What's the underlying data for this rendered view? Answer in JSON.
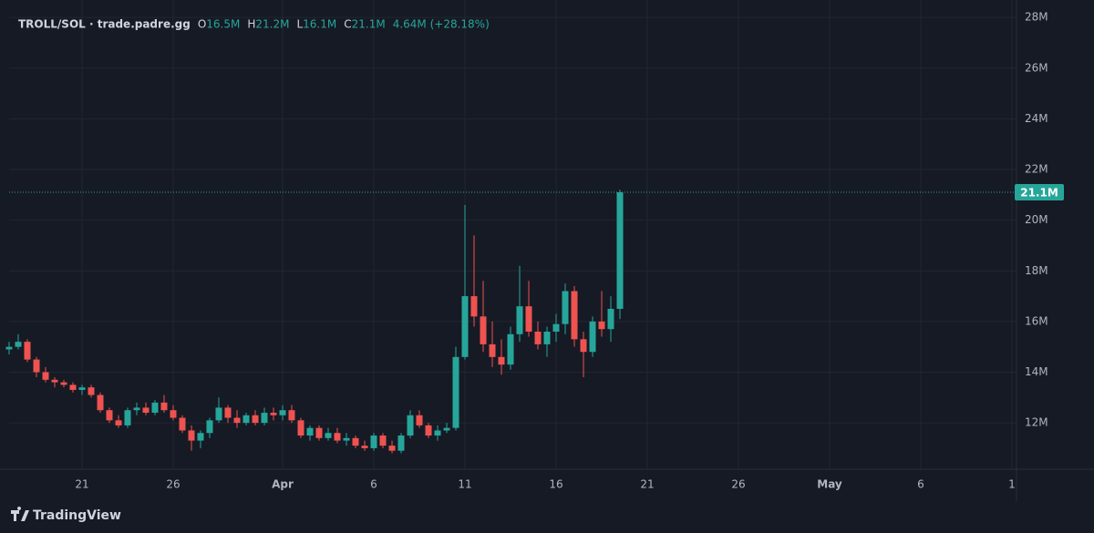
{
  "chart_data": {
    "type": "candlestick",
    "title": "TROLL/SOL · trade.padre.gg",
    "legend": {
      "labels": [
        "O",
        "H",
        "L",
        "C"
      ],
      "value_labels": [
        "16.5M",
        "21.2M",
        "16.1M",
        "21.1M"
      ],
      "change": "4.64M (+28.18%)"
    },
    "brand": "TradingView",
    "up_color": "#26a69a",
    "down_color": "#ef5350",
    "grid": true,
    "x": [
      17,
      17.5,
      18,
      18.5,
      19,
      19.5,
      20,
      20.5,
      21,
      21.5,
      22,
      22.5,
      23,
      23.5,
      24,
      24.5,
      25,
      25.5,
      26,
      26.5,
      27,
      27.5,
      28,
      28.5,
      29,
      29.5,
      30,
      30.5,
      31,
      31.5,
      32,
      32.5,
      33,
      33.5,
      34,
      34.5,
      35,
      35.5,
      36,
      36.5,
      37,
      37.5,
      38,
      38.5,
      39,
      39.5,
      40,
      40.5,
      41,
      41.5,
      42,
      42.5,
      43,
      43.5,
      44,
      44.5,
      45,
      45.5,
      46,
      46.5,
      47,
      47.5,
      48,
      48.5,
      49,
      49.5,
      50,
      50.5
    ],
    "open": [
      14.9,
      15.0,
      15.2,
      14.5,
      14.0,
      13.7,
      13.6,
      13.5,
      13.3,
      13.4,
      13.1,
      12.5,
      12.1,
      11.9,
      12.5,
      12.6,
      12.4,
      12.8,
      12.5,
      12.2,
      11.7,
      11.3,
      11.6,
      12.1,
      12.6,
      12.2,
      12.0,
      12.3,
      12.0,
      12.4,
      12.3,
      12.5,
      12.1,
      11.5,
      11.8,
      11.4,
      11.6,
      11.3,
      11.4,
      11.1,
      11.0,
      11.5,
      11.1,
      10.9,
      11.5,
      12.3,
      11.9,
      11.5,
      11.7,
      11.8,
      14.6,
      17.0,
      16.2,
      15.1,
      14.6,
      14.3,
      15.5,
      16.6,
      15.6,
      15.1,
      15.6,
      15.9,
      17.2,
      15.3,
      14.8,
      16.0,
      15.7,
      16.5
    ],
    "high": [
      15.2,
      15.5,
      15.3,
      14.6,
      14.2,
      13.8,
      13.7,
      13.6,
      13.5,
      13.5,
      13.2,
      12.6,
      12.3,
      12.6,
      12.8,
      12.8,
      12.9,
      13.1,
      12.7,
      12.3,
      11.9,
      11.7,
      12.2,
      13.0,
      12.7,
      12.5,
      12.4,
      12.5,
      12.6,
      12.6,
      12.7,
      12.7,
      12.2,
      11.9,
      11.9,
      11.8,
      11.8,
      11.6,
      11.5,
      11.3,
      11.6,
      11.6,
      11.3,
      11.6,
      12.5,
      12.5,
      12.0,
      11.9,
      12.0,
      15.0,
      20.6,
      19.4,
      17.6,
      16.0,
      15.3,
      15.8,
      18.2,
      17.6,
      16.0,
      15.8,
      16.3,
      17.5,
      17.4,
      15.6,
      16.2,
      17.2,
      17.0,
      21.2
    ],
    "low": [
      14.7,
      14.9,
      14.4,
      13.8,
      13.6,
      13.4,
      13.4,
      13.2,
      13.1,
      13.0,
      12.4,
      12.0,
      11.8,
      11.8,
      12.3,
      12.3,
      12.3,
      12.4,
      12.1,
      11.6,
      10.9,
      11.0,
      11.4,
      12.0,
      12.0,
      11.8,
      11.9,
      11.9,
      11.9,
      12.1,
      12.1,
      12.0,
      11.4,
      11.3,
      11.3,
      11.3,
      11.2,
      11.1,
      11.0,
      10.9,
      10.9,
      11.0,
      10.8,
      10.8,
      11.4,
      11.8,
      11.4,
      11.3,
      11.6,
      11.7,
      14.5,
      15.8,
      14.8,
      14.2,
      13.9,
      14.1,
      15.2,
      15.4,
      14.9,
      14.6,
      15.2,
      15.5,
      15.0,
      13.8,
      14.6,
      15.4,
      15.2,
      16.1
    ],
    "close": [
      15.0,
      15.2,
      14.5,
      14.0,
      13.7,
      13.6,
      13.5,
      13.3,
      13.4,
      13.1,
      12.5,
      12.1,
      11.9,
      12.5,
      12.6,
      12.4,
      12.8,
      12.5,
      12.2,
      11.7,
      11.3,
      11.6,
      12.1,
      12.6,
      12.2,
      12.0,
      12.3,
      12.0,
      12.4,
      12.3,
      12.5,
      12.1,
      11.5,
      11.8,
      11.4,
      11.6,
      11.3,
      11.4,
      11.1,
      11.0,
      11.5,
      11.1,
      10.9,
      11.5,
      12.3,
      11.9,
      11.5,
      11.7,
      11.8,
      14.6,
      17.0,
      16.2,
      15.1,
      14.6,
      14.3,
      15.5,
      16.6,
      15.6,
      15.1,
      15.6,
      15.9,
      17.2,
      15.3,
      14.8,
      16.0,
      15.7,
      16.5,
      21.1
    ],
    "last_price": {
      "value": 21.1,
      "label": "21.1M"
    },
    "xlim": [
      17,
      72.25
    ],
    "xticks": [
      {
        "value": 21,
        "label": "21"
      },
      {
        "value": 26,
        "label": "26"
      },
      {
        "value": 32,
        "label": "Apr"
      },
      {
        "value": 37,
        "label": "6"
      },
      {
        "value": 42,
        "label": "11"
      },
      {
        "value": 47,
        "label": "16"
      },
      {
        "value": 52,
        "label": "21"
      },
      {
        "value": 57,
        "label": "26"
      },
      {
        "value": 62,
        "label": "May"
      },
      {
        "value": 67,
        "label": "6"
      },
      {
        "value": 72,
        "label": "1"
      }
    ],
    "ylim": [
      10.17,
      28.33
    ],
    "yticks": [
      {
        "value": 12,
        "label": "12M"
      },
      {
        "value": 14,
        "label": "14M"
      },
      {
        "value": 16,
        "label": "16M"
      },
      {
        "value": 18,
        "label": "18M"
      },
      {
        "value": 20,
        "label": "20M"
      },
      {
        "value": 22,
        "label": "22M"
      },
      {
        "value": 24,
        "label": "24M"
      },
      {
        "value": 26,
        "label": "26M"
      },
      {
        "value": 28,
        "label": "28M"
      }
    ]
  }
}
